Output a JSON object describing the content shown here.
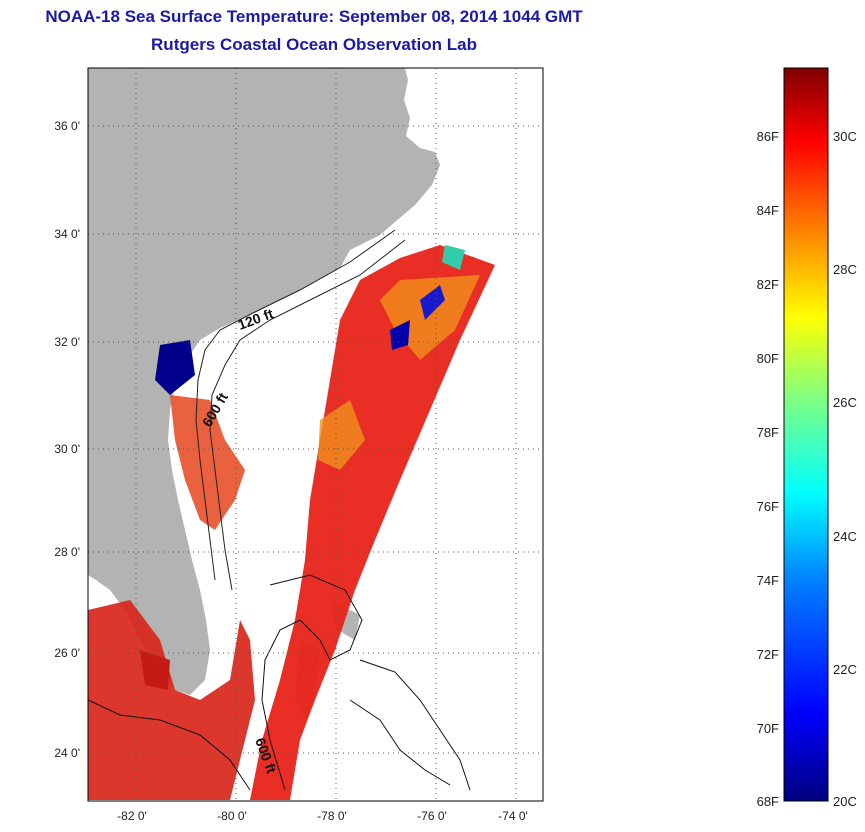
{
  "header": {
    "title": "NOAA-18 Sea Surface Temperature:  September 08, 2014 1044 GMT",
    "subtitle": "Rutgers Coastal Ocean Observation Lab"
  },
  "map": {
    "lat_ticks": [
      "24 0'",
      "26 0'",
      "28 0'",
      "30 0'",
      "32 0'",
      "34 0'",
      "36 0'"
    ],
    "lon_ticks": [
      "-82 0'",
      "-80 0'",
      "-78 0'",
      "-76 0'",
      "-74 0'"
    ],
    "depth_labels": [
      "120 ft",
      "600 ft",
      "600 ft"
    ],
    "colors": {
      "land": "#b3b3b3",
      "water": "#ffffff",
      "coast": "#000000"
    }
  },
  "colorbar": {
    "fahrenheit": [
      "68F",
      "70F",
      "72F",
      "74F",
      "76F",
      "78F",
      "80F",
      "82F",
      "84F",
      "86F"
    ],
    "celsius": [
      "20C",
      "22C",
      "24C",
      "26C",
      "28C",
      "30C"
    ],
    "gradient": [
      "#00007f",
      "#0000ff",
      "#0080ff",
      "#00ffff",
      "#80ff80",
      "#ffff00",
      "#ff8000",
      "#ff0000",
      "#7f0000"
    ]
  }
}
